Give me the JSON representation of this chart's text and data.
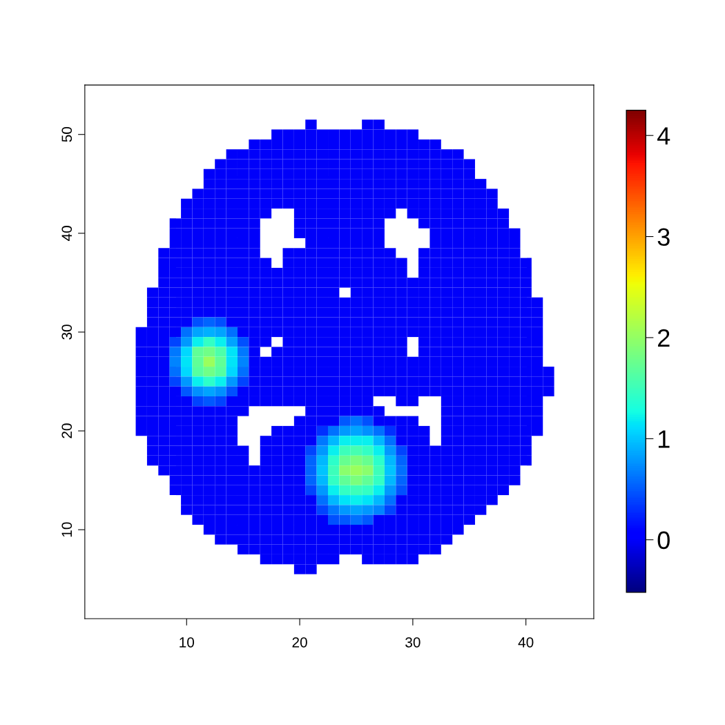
{
  "chart_data": {
    "type": "heatmap",
    "x": [
      6,
      7,
      8,
      9,
      10,
      11,
      12,
      13,
      14,
      15,
      16,
      17,
      18,
      19,
      20,
      21,
      22,
      23,
      24,
      25,
      26,
      27,
      28,
      29,
      30,
      31,
      32,
      33,
      34,
      35,
      36,
      37,
      38,
      39,
      40,
      41,
      42
    ],
    "y": [
      51,
      50,
      49,
      48,
      47,
      46,
      45,
      44,
      43,
      42,
      41,
      40,
      39,
      38,
      37,
      36,
      35,
      34,
      33,
      32,
      31,
      30,
      29,
      28,
      27,
      26,
      25,
      24,
      23,
      22,
      21,
      20,
      19,
      18,
      17,
      16,
      15,
      14,
      13,
      12,
      11,
      10,
      9,
      8,
      7,
      6
    ],
    "xlim": [
      1,
      46
    ],
    "ylim": [
      1,
      55
    ],
    "xticks": [
      10,
      20,
      30,
      40
    ],
    "yticks": [
      10,
      20,
      30,
      40,
      50
    ],
    "clim": [
      -0.52,
      4.25
    ],
    "cticks": [
      0,
      1,
      2,
      3,
      4
    ],
    "grid": false,
    "cells": [
      [
        null,
        null,
        null,
        null,
        null,
        null,
        null,
        null,
        null,
        null,
        null,
        null,
        null,
        null,
        null,
        0,
        null,
        null,
        null,
        null,
        0,
        0,
        null,
        null,
        null,
        null,
        null,
        null,
        null,
        null,
        null,
        null,
        null,
        null,
        null,
        null,
        null
      ],
      [
        null,
        null,
        null,
        null,
        null,
        null,
        null,
        null,
        null,
        null,
        null,
        null,
        0,
        0,
        0,
        0,
        0,
        0,
        0,
        0,
        0,
        0,
        0,
        0,
        0,
        null,
        null,
        null,
        null,
        null,
        null,
        null,
        null,
        null,
        null,
        null,
        null
      ],
      [
        null,
        null,
        null,
        null,
        null,
        null,
        null,
        null,
        null,
        null,
        0,
        0,
        0,
        0,
        0,
        0,
        0,
        0,
        0,
        0,
        0,
        0,
        0,
        0,
        0,
        0,
        0,
        null,
        null,
        null,
        null,
        null,
        null,
        null,
        null,
        null,
        null
      ],
      [
        null,
        null,
        null,
        null,
        null,
        null,
        null,
        null,
        0,
        0,
        0,
        0,
        0,
        0,
        0,
        0,
        0,
        0,
        0,
        0,
        0,
        0,
        0,
        0,
        0,
        0,
        0,
        0,
        0,
        null,
        null,
        null,
        null,
        null,
        null,
        null,
        null
      ],
      [
        null,
        null,
        null,
        null,
        null,
        null,
        null,
        0,
        0,
        0,
        0,
        0,
        0,
        0,
        0,
        0,
        0,
        0,
        0,
        0,
        0,
        0,
        0,
        0,
        0,
        0,
        0,
        0,
        0,
        0,
        null,
        null,
        null,
        null,
        null,
        null,
        null
      ],
      [
        null,
        null,
        null,
        null,
        null,
        null,
        0,
        0,
        0,
        0,
        0,
        0,
        0,
        0,
        0,
        0,
        0,
        0,
        0,
        0,
        0,
        0,
        0,
        0,
        0,
        0,
        0,
        0,
        0,
        0,
        null,
        null,
        null,
        null,
        null,
        null,
        null
      ],
      [
        null,
        null,
        null,
        null,
        null,
        null,
        0,
        0,
        0,
        0,
        0,
        0,
        0,
        0,
        0,
        0,
        0,
        0,
        0,
        0,
        0,
        0,
        0,
        0,
        0,
        0,
        0,
        0,
        0,
        0,
        0,
        null,
        null,
        null,
        null,
        null,
        null
      ],
      [
        null,
        null,
        null,
        null,
        null,
        0,
        0,
        0,
        0,
        0,
        0,
        0,
        0,
        0,
        0,
        0,
        0,
        0,
        0,
        0,
        0,
        0,
        0,
        0,
        0,
        0,
        0,
        0,
        0,
        0,
        0,
        0,
        null,
        null,
        null,
        null,
        null
      ],
      [
        null,
        null,
        null,
        null,
        0,
        0,
        0,
        0,
        0,
        0,
        0,
        0,
        0,
        0,
        0,
        0,
        0,
        0,
        0,
        0,
        0,
        0,
        0,
        0,
        0,
        0,
        0,
        0,
        0,
        0,
        0,
        0,
        null,
        null,
        null,
        null,
        null
      ],
      [
        null,
        null,
        null,
        null,
        0,
        0,
        0,
        0,
        0,
        0,
        0,
        0,
        null,
        null,
        0,
        0,
        0,
        0,
        0,
        0,
        0,
        0,
        0,
        null,
        0,
        0,
        0,
        0,
        0,
        0,
        0,
        0,
        0,
        null,
        null,
        null,
        null
      ],
      [
        null,
        null,
        null,
        0,
        0,
        0,
        0,
        0,
        0,
        0,
        0,
        null,
        null,
        null,
        0,
        0,
        0,
        0,
        0,
        0,
        0,
        0,
        null,
        null,
        null,
        0,
        0,
        0,
        0,
        0,
        0,
        0,
        0,
        null,
        null,
        null,
        null
      ],
      [
        null,
        null,
        null,
        0,
        0,
        0,
        0,
        0,
        0,
        0,
        0,
        null,
        null,
        null,
        0,
        0,
        0,
        0,
        0,
        0,
        0,
        0,
        null,
        null,
        null,
        null,
        0,
        0,
        0,
        0,
        0,
        0,
        0,
        0,
        null,
        null,
        null
      ],
      [
        null,
        null,
        null,
        0,
        0,
        0,
        0,
        0,
        0,
        0,
        0,
        null,
        null,
        null,
        null,
        0,
        0,
        0,
        0,
        0,
        0,
        0,
        null,
        null,
        null,
        null,
        0,
        0,
        0,
        0,
        0,
        0,
        0,
        0,
        null,
        null,
        null
      ],
      [
        null,
        null,
        0,
        0,
        0,
        0,
        0,
        0,
        0,
        0,
        0,
        null,
        null,
        0,
        0,
        0,
        0,
        0,
        0,
        0,
        0,
        0,
        0,
        null,
        null,
        0,
        0,
        0,
        0,
        0,
        0,
        0,
        0,
        0,
        null,
        null,
        null
      ],
      [
        null,
        null,
        0,
        0,
        0,
        0,
        0,
        0,
        0,
        0,
        0,
        0,
        null,
        0,
        0,
        0,
        0,
        0,
        0,
        0,
        0,
        0,
        0,
        0,
        null,
        0,
        0,
        0,
        0,
        0,
        0,
        0,
        0,
        0,
        0,
        null,
        null
      ],
      [
        null,
        null,
        0,
        0,
        0,
        0,
        0,
        0,
        0,
        0,
        0,
        0,
        0,
        0,
        0,
        0,
        0,
        0,
        0,
        0,
        0,
        0,
        0,
        0,
        null,
        0,
        0,
        0,
        0,
        0,
        0,
        0,
        0,
        0,
        0,
        null,
        null
      ],
      [
        null,
        null,
        0,
        0,
        0,
        0,
        0,
        0,
        0,
        0,
        0,
        0,
        0,
        0,
        0,
        0,
        0,
        0,
        0,
        0,
        0,
        0,
        0,
        0,
        0,
        0,
        0,
        0,
        0,
        0,
        0,
        0,
        0,
        0,
        0,
        null,
        null
      ],
      [
        null,
        0,
        0,
        0,
        0,
        0,
        0,
        0,
        0,
        0,
        0,
        0,
        0,
        0,
        0,
        0,
        0,
        0,
        null,
        0,
        0,
        0,
        0,
        0,
        0,
        0,
        0,
        0,
        0,
        0,
        0,
        0,
        0,
        0,
        0,
        null,
        null
      ],
      [
        null,
        0,
        0,
        0,
        0,
        0,
        0,
        0,
        0,
        0,
        0,
        0,
        0,
        0,
        0,
        0,
        0,
        0,
        0,
        0,
        0,
        0,
        0,
        0,
        0,
        0,
        0,
        0,
        0,
        0,
        0,
        0,
        0,
        0,
        0,
        0,
        null
      ],
      [
        null,
        0,
        0,
        0,
        0,
        0,
        0,
        0,
        0,
        0,
        0,
        0,
        0,
        0,
        0,
        0,
        0,
        0,
        0,
        0,
        0,
        0,
        0,
        0,
        0,
        0,
        0,
        0,
        0,
        0,
        0,
        0,
        0,
        0,
        0,
        0,
        null
      ],
      [
        null,
        0,
        0,
        0,
        0,
        0.45,
        0.55,
        0.45,
        0,
        0,
        0,
        0,
        0,
        0,
        0,
        0,
        0,
        0,
        0,
        0,
        0,
        0,
        0,
        0,
        0,
        0,
        0,
        0,
        0,
        0,
        0,
        0,
        0,
        0,
        0,
        0,
        null
      ],
      [
        0,
        0,
        0,
        0,
        0.6,
        0.85,
        0.9,
        0.85,
        0.6,
        0,
        0,
        0,
        0,
        0,
        0,
        0,
        0,
        0,
        0,
        0,
        0,
        0,
        0,
        0,
        0,
        0,
        0,
        0,
        0,
        0,
        0,
        0,
        0,
        0,
        0,
        0,
        null
      ],
      [
        0,
        0,
        0,
        0.4,
        0.8,
        1.2,
        1.45,
        1.2,
        0.85,
        0.45,
        0,
        0,
        null,
        0,
        0,
        0,
        0,
        0,
        0,
        0,
        0,
        0,
        0,
        0,
        null,
        0,
        0,
        0,
        0,
        0,
        0,
        0,
        0,
        0,
        0,
        0,
        null
      ],
      [
        0,
        0,
        0,
        0.65,
        1.1,
        1.7,
        1.8,
        1.6,
        1.15,
        0.65,
        0,
        null,
        0,
        0,
        0,
        0,
        0,
        0,
        0,
        0,
        0,
        0,
        0,
        0,
        null,
        0,
        0,
        0,
        0,
        0,
        0,
        0,
        0,
        0,
        0,
        0,
        null
      ],
      [
        0,
        0,
        0,
        0.7,
        1.15,
        1.7,
        2.05,
        1.7,
        1.15,
        0.7,
        0,
        0,
        0,
        0,
        0,
        0,
        0,
        0,
        0,
        0,
        0,
        0,
        0,
        0,
        0,
        0,
        0,
        0,
        0,
        0,
        0,
        0,
        0,
        0,
        0,
        0,
        null
      ],
      [
        0,
        0,
        0,
        0.6,
        1.1,
        1.65,
        1.8,
        1.65,
        1.1,
        0.6,
        0,
        0,
        0,
        0,
        0,
        0,
        0,
        0,
        0,
        0,
        0,
        0,
        0,
        0,
        0,
        0,
        0,
        0,
        0,
        0,
        0,
        0,
        0,
        0,
        0,
        0,
        0
      ],
      [
        0,
        0,
        0,
        0.4,
        0.8,
        1.2,
        1.4,
        1.2,
        0.8,
        0.4,
        0,
        0,
        0,
        0,
        0,
        0,
        0,
        0,
        0,
        0,
        0,
        0,
        0,
        0,
        0,
        0,
        0,
        0,
        0,
        0,
        0,
        0,
        0,
        0,
        0,
        0,
        0
      ],
      [
        0,
        0,
        0,
        0,
        0.5,
        0.75,
        0.85,
        0.75,
        0.45,
        0,
        0,
        0,
        0,
        0,
        0,
        0,
        0,
        0,
        0,
        0,
        0,
        0,
        0,
        0,
        0,
        0,
        0,
        0,
        0,
        0,
        0,
        0,
        0,
        0,
        0,
        0,
        0
      ],
      [
        0,
        0,
        0,
        0,
        0,
        0.4,
        0.5,
        0.4,
        0,
        0,
        0,
        0,
        0,
        0,
        0,
        0,
        0,
        0,
        0,
        0,
        0,
        null,
        null,
        0,
        0,
        null,
        null,
        0,
        0,
        0,
        0,
        0,
        0,
        0,
        0,
        0,
        null
      ],
      [
        0,
        0,
        0,
        0,
        0,
        0,
        0,
        0,
        0,
        0,
        null,
        null,
        null,
        null,
        null,
        0,
        0,
        0,
        0,
        0,
        0,
        0,
        null,
        null,
        null,
        null,
        null,
        0,
        0,
        0,
        0,
        0,
        0,
        0,
        0,
        0,
        null
      ],
      [
        0,
        0,
        0,
        0,
        0,
        0,
        0,
        0,
        0,
        null,
        null,
        null,
        null,
        null,
        0,
        0,
        0,
        0,
        0.5,
        0.6,
        0.45,
        0,
        0,
        0,
        0,
        null,
        null,
        0,
        0,
        0,
        0,
        0,
        0,
        0,
        0,
        0,
        null
      ],
      [
        0,
        0,
        0,
        0,
        0,
        0,
        0,
        0,
        0,
        null,
        null,
        null,
        0,
        0,
        0,
        0,
        0.3,
        0.6,
        0.8,
        0.85,
        0.75,
        0.6,
        0.3,
        0,
        0,
        0,
        null,
        0,
        0,
        0,
        0,
        0,
        0,
        0,
        0,
        0,
        null
      ],
      [
        null,
        0,
        0,
        0,
        0,
        0,
        0,
        0,
        0,
        null,
        null,
        0,
        0,
        0,
        0,
        0,
        0.65,
        0.95,
        1.2,
        1.2,
        1.2,
        0.95,
        0.6,
        0,
        0,
        0,
        null,
        0,
        0,
        0,
        0,
        0,
        0,
        0,
        0,
        null,
        null
      ],
      [
        null,
        0,
        0,
        0,
        0,
        0,
        0,
        0,
        0,
        0,
        null,
        0,
        0,
        0,
        0,
        0.4,
        0.8,
        1.2,
        1.5,
        1.55,
        1.45,
        1.2,
        0.8,
        0.4,
        0,
        0,
        0,
        0,
        0,
        0,
        0,
        0,
        0,
        0,
        0,
        null,
        null
      ],
      [
        null,
        0,
        0,
        0,
        0,
        0,
        0,
        0,
        0,
        0,
        null,
        0,
        0,
        0,
        0,
        0.55,
        0.95,
        1.4,
        1.75,
        1.85,
        1.75,
        1.4,
        0.95,
        0.55,
        0,
        0,
        0,
        0,
        0,
        0,
        0,
        0,
        0,
        0,
        0,
        null,
        null
      ],
      [
        null,
        null,
        0,
        0,
        0,
        0,
        0,
        0,
        0,
        0,
        0,
        0,
        0,
        0,
        0,
        0.55,
        1.0,
        1.5,
        1.95,
        2.05,
        1.95,
        1.5,
        1.0,
        0.6,
        0,
        0,
        0,
        0,
        0,
        0,
        0,
        0,
        0,
        0,
        null,
        null,
        null
      ],
      [
        null,
        null,
        null,
        0,
        0,
        0,
        0,
        0,
        0,
        0,
        0,
        0,
        0,
        0,
        0,
        0.55,
        0.95,
        1.45,
        1.7,
        1.85,
        1.7,
        1.45,
        0.95,
        0.55,
        0,
        0,
        0,
        0,
        0,
        0,
        0,
        0,
        0,
        0,
        null,
        null,
        null
      ],
      [
        null,
        null,
        null,
        0,
        0,
        0,
        0,
        0,
        0,
        0,
        0,
        0,
        0,
        0,
        0,
        0.4,
        0.8,
        1.2,
        1.45,
        1.5,
        1.45,
        1.2,
        0.8,
        0.45,
        0,
        0,
        0,
        0,
        0,
        0,
        0,
        0,
        0,
        null,
        null,
        null,
        null
      ],
      [
        null,
        null,
        null,
        null,
        0,
        0,
        0,
        0,
        0,
        0,
        0,
        0,
        0,
        0,
        0,
        0,
        0.6,
        0.95,
        1.15,
        1.2,
        1.15,
        0.95,
        0.6,
        0,
        0,
        0,
        0,
        0,
        0,
        0,
        0,
        0,
        null,
        null,
        null,
        null,
        null
      ],
      [
        null,
        null,
        null,
        null,
        0,
        0,
        0,
        0,
        0,
        0,
        0,
        0,
        0,
        0,
        0,
        0,
        0.4,
        0.65,
        0.8,
        0.85,
        0.8,
        0.7,
        0.4,
        0,
        0,
        0,
        0,
        0,
        0,
        0,
        0,
        null,
        null,
        null,
        null,
        null,
        null
      ],
      [
        null,
        null,
        null,
        null,
        null,
        0,
        0,
        0,
        0,
        0,
        0,
        0,
        0,
        0,
        0,
        0,
        0,
        0.45,
        0.5,
        0.6,
        0.5,
        0,
        0,
        0,
        0,
        0,
        0,
        0,
        0,
        0,
        null,
        null,
        null,
        null,
        null,
        null,
        null
      ],
      [
        null,
        null,
        null,
        null,
        null,
        null,
        0,
        0,
        0,
        0,
        0,
        0,
        0,
        0,
        0,
        0,
        0,
        0,
        0,
        0,
        0,
        0,
        0,
        0,
        0,
        0,
        0,
        0,
        0,
        null,
        null,
        null,
        null,
        null,
        null,
        null,
        null
      ],
      [
        null,
        null,
        null,
        null,
        null,
        null,
        null,
        0,
        0,
        0,
        0,
        0,
        0,
        0,
        0,
        0,
        0,
        0,
        0,
        0,
        0,
        0,
        0,
        0,
        0,
        0,
        0,
        0,
        null,
        null,
        null,
        null,
        null,
        null,
        null,
        null,
        null
      ],
      [
        null,
        null,
        null,
        null,
        null,
        null,
        null,
        null,
        null,
        0,
        0,
        0,
        0,
        0,
        0,
        0,
        0,
        0,
        0,
        0,
        0,
        0,
        0,
        0,
        0,
        0,
        0,
        null,
        null,
        null,
        null,
        null,
        null,
        null,
        null,
        null,
        null
      ],
      [
        null,
        null,
        null,
        null,
        null,
        null,
        null,
        null,
        null,
        null,
        null,
        0,
        0,
        0,
        0,
        0,
        0,
        0,
        null,
        null,
        0,
        0,
        0,
        0,
        0,
        null,
        null,
        null,
        null,
        null,
        null,
        null,
        null,
        null,
        null,
        null,
        null
      ],
      [
        null,
        null,
        null,
        null,
        null,
        null,
        null,
        null,
        null,
        null,
        null,
        null,
        null,
        null,
        0,
        0,
        null,
        null,
        null,
        null,
        null,
        null,
        null,
        null,
        null,
        null,
        null,
        null,
        null,
        null,
        null,
        null,
        null,
        null,
        null,
        null,
        null
      ]
    ]
  }
}
